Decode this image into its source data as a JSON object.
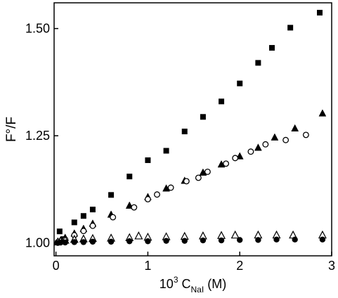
{
  "chart_data": {
    "type": "scatter",
    "title": "",
    "xlabel": {
      "prefix": "10",
      "superscript": "3",
      "main": " C",
      "subscript": "NaI",
      "unit": " (M)"
    },
    "ylabel": "F°/F",
    "xlim": [
      -0.02,
      3.0
    ],
    "ylim": [
      0.97,
      1.56
    ],
    "xticks": [
      {
        "value": 0,
        "label": "0"
      },
      {
        "value": 1,
        "label": "1"
      },
      {
        "value": 2,
        "label": "2"
      },
      {
        "value": 3,
        "label": "3"
      }
    ],
    "yticks": [
      {
        "value": 1.0,
        "label": "1.00"
      },
      {
        "value": 1.25,
        "label": "1.25"
      },
      {
        "value": 1.5,
        "label": "1.50"
      }
    ],
    "grid": false,
    "legend": "none",
    "series": [
      {
        "marker": "square-filled",
        "color": "#000000",
        "points": [
          [
            0.04,
            1.027
          ],
          [
            0.08,
            1.009
          ],
          [
            0.2,
            1.048
          ],
          [
            0.3,
            1.063
          ],
          [
            0.4,
            1.078
          ],
          [
            0.6,
            1.112
          ],
          [
            0.8,
            1.155
          ],
          [
            1.0,
            1.193
          ],
          [
            1.2,
            1.215
          ],
          [
            1.4,
            1.26
          ],
          [
            1.6,
            1.294
          ],
          [
            1.8,
            1.33
          ],
          [
            2.0,
            1.372
          ],
          [
            2.2,
            1.42
          ],
          [
            2.35,
            1.455
          ],
          [
            2.55,
            1.502
          ],
          [
            2.87,
            1.537
          ]
        ]
      },
      {
        "marker": "triangle-filled",
        "color": "#000000",
        "points": [
          [
            0.02,
            1.003
          ],
          [
            0.05,
            1.006
          ],
          [
            0.1,
            1.012
          ],
          [
            0.2,
            1.022
          ],
          [
            0.3,
            1.033
          ],
          [
            0.4,
            1.045
          ],
          [
            0.6,
            1.066
          ],
          [
            0.8,
            1.087
          ],
          [
            1.0,
            1.107
          ],
          [
            1.2,
            1.127
          ],
          [
            1.4,
            1.145
          ],
          [
            1.6,
            1.164
          ],
          [
            1.8,
            1.183
          ],
          [
            2.0,
            1.202
          ],
          [
            2.2,
            1.222
          ],
          [
            2.38,
            1.246
          ],
          [
            2.6,
            1.267
          ],
          [
            2.9,
            1.302
          ]
        ]
      },
      {
        "marker": "circle-open",
        "color": "#000000",
        "points": [
          [
            0.02,
            1.002
          ],
          [
            0.05,
            1.004
          ],
          [
            0.1,
            1.008
          ],
          [
            0.2,
            1.018
          ],
          [
            0.3,
            1.028
          ],
          [
            0.4,
            1.04
          ],
          [
            0.62,
            1.06
          ],
          [
            0.85,
            1.083
          ],
          [
            1.0,
            1.102
          ],
          [
            1.1,
            1.113
          ],
          [
            1.25,
            1.129
          ],
          [
            1.42,
            1.144
          ],
          [
            1.55,
            1.152
          ],
          [
            1.65,
            1.166
          ],
          [
            1.85,
            1.185
          ],
          [
            1.95,
            1.198
          ],
          [
            2.12,
            1.213
          ],
          [
            2.28,
            1.23
          ],
          [
            2.5,
            1.24
          ],
          [
            2.72,
            1.252
          ]
        ]
      },
      {
        "marker": "triangle-open",
        "color": "#000000",
        "points": [
          [
            0.02,
            1.002
          ],
          [
            0.05,
            1.004
          ],
          [
            0.1,
            1.006
          ],
          [
            0.2,
            1.008
          ],
          [
            0.3,
            1.009
          ],
          [
            0.4,
            1.01
          ],
          [
            0.6,
            1.011
          ],
          [
            0.8,
            1.012
          ],
          [
            0.9,
            1.016
          ],
          [
            1.0,
            1.013
          ],
          [
            1.2,
            1.014
          ],
          [
            1.4,
            1.015
          ],
          [
            1.6,
            1.016
          ],
          [
            1.8,
            1.017
          ],
          [
            1.95,
            1.018
          ],
          [
            2.2,
            1.018
          ],
          [
            2.4,
            1.018
          ],
          [
            2.58,
            1.018
          ],
          [
            2.9,
            1.018
          ]
        ]
      },
      {
        "marker": "circle-filled",
        "color": "#000000",
        "points": [
          [
            0.02,
            1.0
          ],
          [
            0.05,
            1.001
          ],
          [
            0.1,
            1.001
          ],
          [
            0.2,
            1.002
          ],
          [
            0.3,
            1.002
          ],
          [
            0.4,
            1.003
          ],
          [
            0.6,
            1.003
          ],
          [
            0.8,
            1.004
          ],
          [
            1.0,
            1.004
          ],
          [
            1.2,
            1.005
          ],
          [
            1.4,
            1.005
          ],
          [
            1.6,
            1.006
          ],
          [
            1.8,
            1.006
          ],
          [
            2.0,
            1.007
          ],
          [
            2.2,
            1.007
          ],
          [
            2.4,
            1.008
          ],
          [
            2.6,
            1.008
          ],
          [
            2.9,
            1.008
          ]
        ]
      }
    ]
  }
}
